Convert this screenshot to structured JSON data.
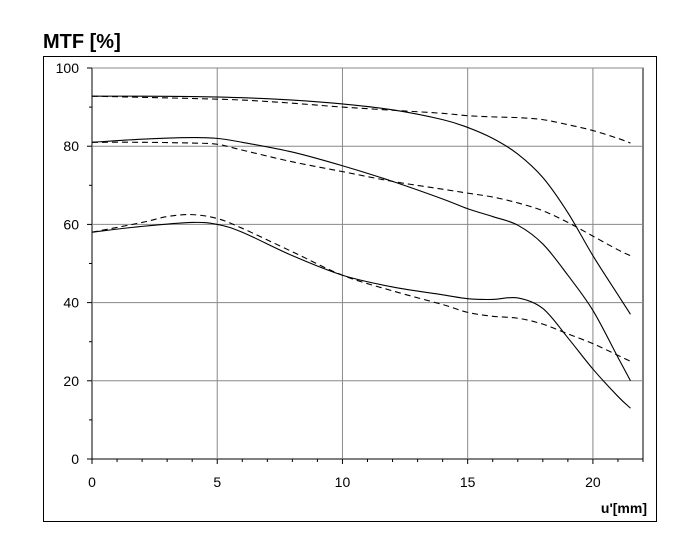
{
  "chart_data": {
    "type": "line",
    "title": "MTF [%]",
    "xlabel": "u'[mm]",
    "ylabel": "",
    "xlim": [
      0,
      22
    ],
    "ylim": [
      0,
      100
    ],
    "x_ticks": [
      0,
      5,
      10,
      15,
      20
    ],
    "y_ticks": [
      0,
      20,
      40,
      60,
      80,
      100
    ],
    "grid": true,
    "series": [
      {
        "style": "solid",
        "x": [
          0,
          2,
          4,
          6,
          8,
          10,
          12,
          14,
          15,
          16,
          17,
          18,
          19,
          20,
          21,
          21.5
        ],
        "y": [
          92.8,
          92.8,
          92.7,
          92.4,
          91.8,
          90.8,
          89.3,
          86.8,
          84.8,
          82.0,
          78.0,
          72.0,
          63.0,
          52.0,
          42.0,
          37.0
        ]
      },
      {
        "style": "dashed",
        "x": [
          0,
          2,
          4,
          6,
          8,
          10,
          12,
          14,
          15,
          16,
          17,
          18,
          19,
          20,
          21,
          21.5
        ],
        "y": [
          92.8,
          92.5,
          92.2,
          91.8,
          91.0,
          90.0,
          89.2,
          88.4,
          87.8,
          87.5,
          87.3,
          86.8,
          85.5,
          84.0,
          82.0,
          80.8
        ]
      },
      {
        "style": "solid",
        "x": [
          0,
          2,
          4,
          5,
          6,
          8,
          10,
          12,
          14,
          15,
          16,
          17,
          18,
          19,
          20,
          21,
          21.5
        ],
        "y": [
          81.0,
          81.8,
          82.2,
          82.0,
          81.0,
          78.5,
          75.0,
          71.0,
          66.5,
          64.0,
          62.0,
          59.8,
          55.0,
          47.0,
          38.0,
          26.0,
          20.0
        ]
      },
      {
        "style": "dashed",
        "x": [
          0,
          2,
          4,
          5,
          6,
          8,
          10,
          12,
          14,
          15,
          16,
          17,
          18,
          19,
          20,
          21,
          21.5
        ],
        "y": [
          81.0,
          81.0,
          80.8,
          80.5,
          79.0,
          76.0,
          73.5,
          71.0,
          69.0,
          68.0,
          67.0,
          65.5,
          63.5,
          60.5,
          57.0,
          53.5,
          52.0
        ]
      },
      {
        "style": "solid",
        "x": [
          0,
          2,
          4,
          5,
          6,
          8,
          10,
          12,
          14,
          15,
          16,
          17,
          18,
          19,
          20,
          21,
          21.5
        ],
        "y": [
          58.0,
          59.5,
          60.5,
          60.0,
          58.0,
          52.0,
          47.0,
          44.0,
          42.0,
          41.0,
          40.8,
          41.2,
          38.5,
          31.0,
          23.0,
          16.0,
          13.0
        ]
      },
      {
        "style": "dashed",
        "x": [
          0,
          2,
          3,
          4,
          5,
          6,
          8,
          10,
          12,
          14,
          15,
          16,
          17,
          18,
          19,
          20,
          21,
          21.5
        ],
        "y": [
          58.0,
          60.5,
          62.0,
          62.5,
          61.5,
          59.0,
          53.0,
          47.0,
          43.0,
          39.5,
          37.5,
          36.5,
          36.0,
          34.5,
          32.0,
          29.5,
          26.5,
          25.0
        ]
      }
    ]
  }
}
